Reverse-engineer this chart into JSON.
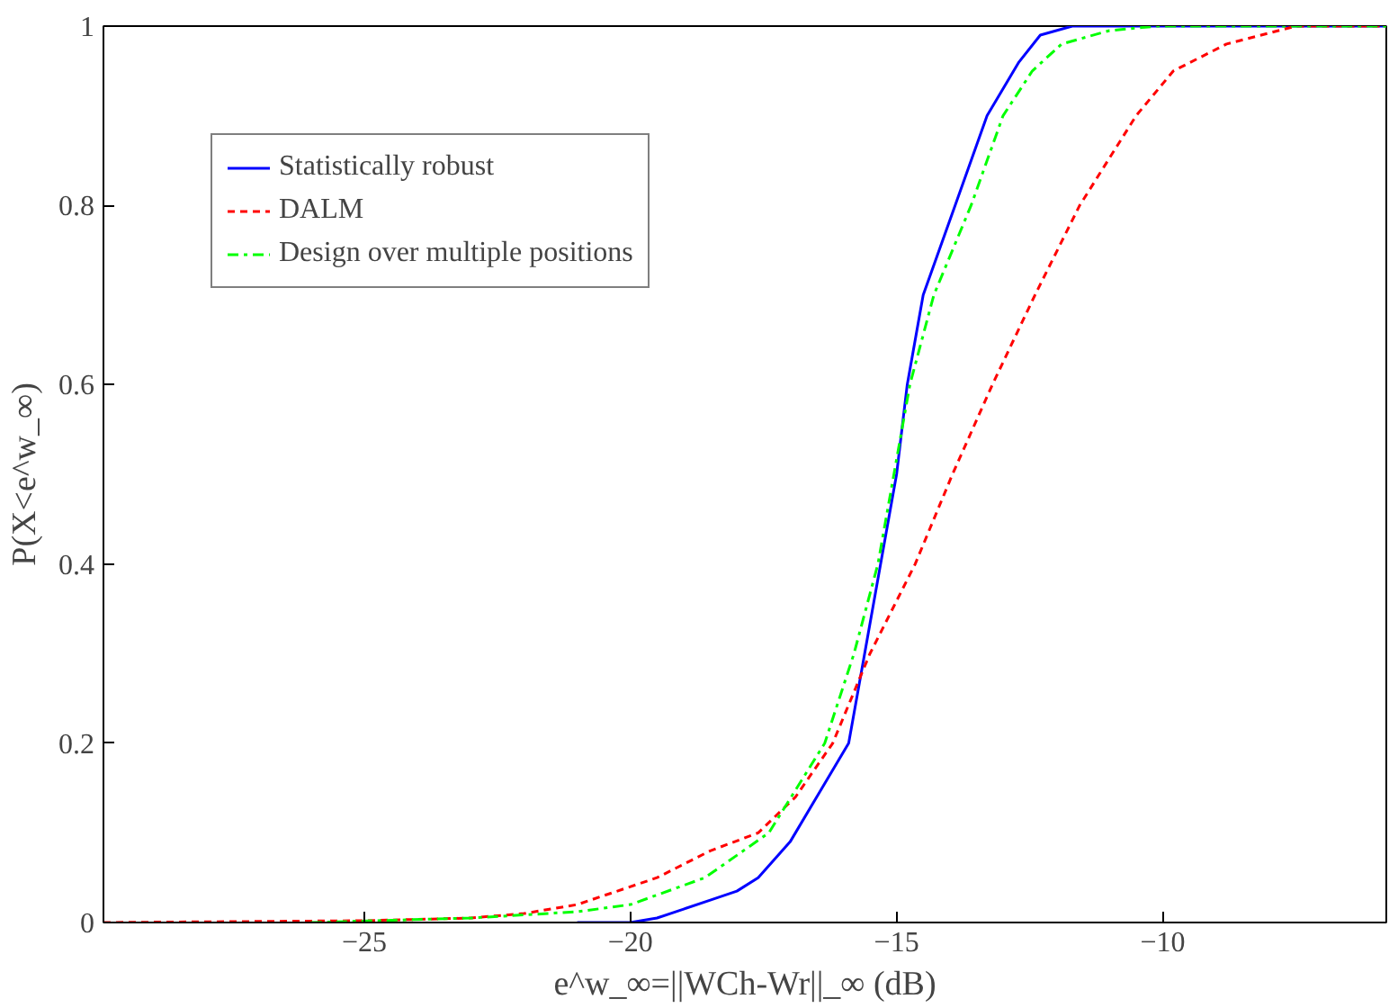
{
  "chart_data": {
    "type": "line",
    "xlabel": "e^w_∞=||WCh-Wr||_∞ (dB)",
    "ylabel": "P(X<e^w_∞)",
    "xlim": [
      -29.9,
      -5.8
    ],
    "xticks": [
      -25,
      -20,
      -15,
      -10
    ],
    "ylim": [
      0,
      1
    ],
    "yticks": [
      0,
      0.2,
      0.4,
      0.6,
      0.8,
      1
    ],
    "grid": false,
    "legend": "top left",
    "marker": "none",
    "series": [
      {
        "name": "Statistically robust",
        "color": "#0000ff",
        "line_style": "solid",
        "x": [
          -21,
          -20,
          -19.5,
          -19,
          -18.5,
          -18,
          -17.6,
          -17,
          -16.5,
          -15.9,
          -15.6,
          -15.3,
          -15,
          -14.8,
          -14.5,
          -13.9,
          -13.3,
          -12.7,
          -12.3,
          -11.7,
          -5.8
        ],
        "values": [
          0,
          0,
          0.005,
          0.015,
          0.025,
          0.035,
          0.05,
          0.09,
          0.14,
          0.2,
          0.3,
          0.4,
          0.5,
          0.6,
          0.7,
          0.8,
          0.9,
          0.96,
          0.99,
          1,
          1
        ]
      },
      {
        "name": "DALM",
        "color": "#ff0000",
        "line_style": "dashed",
        "x": [
          -29.9,
          -25,
          -23,
          -22,
          -21,
          -19.5,
          -18.5,
          -17.6,
          -16.9,
          -16.2,
          -15.5,
          -14.65,
          -13.95,
          -13.2,
          -12.4,
          -11.56,
          -10.5,
          -9.8,
          -8.8,
          -7.5,
          -5.8
        ],
        "values": [
          0,
          0.002,
          0.005,
          0.01,
          0.02,
          0.05,
          0.08,
          0.1,
          0.14,
          0.2,
          0.3,
          0.4,
          0.5,
          0.6,
          0.7,
          0.8,
          0.9,
          0.95,
          0.98,
          1,
          1
        ]
      },
      {
        "name": "Design over multiple positions",
        "color": "#00ff00",
        "line_style": "dashdot",
        "x": [
          -26,
          -23,
          -21,
          -20,
          -18.6,
          -17.4,
          -16.35,
          -15.8,
          -15.35,
          -15.05,
          -14.75,
          -14.3,
          -13.6,
          -13.0,
          -12.45,
          -11.9,
          -11,
          -10.1,
          -5.8
        ],
        "values": [
          0,
          0.005,
          0.012,
          0.02,
          0.05,
          0.1,
          0.2,
          0.3,
          0.4,
          0.5,
          0.6,
          0.7,
          0.8,
          0.9,
          0.95,
          0.98,
          0.995,
          1,
          1
        ]
      }
    ]
  }
}
